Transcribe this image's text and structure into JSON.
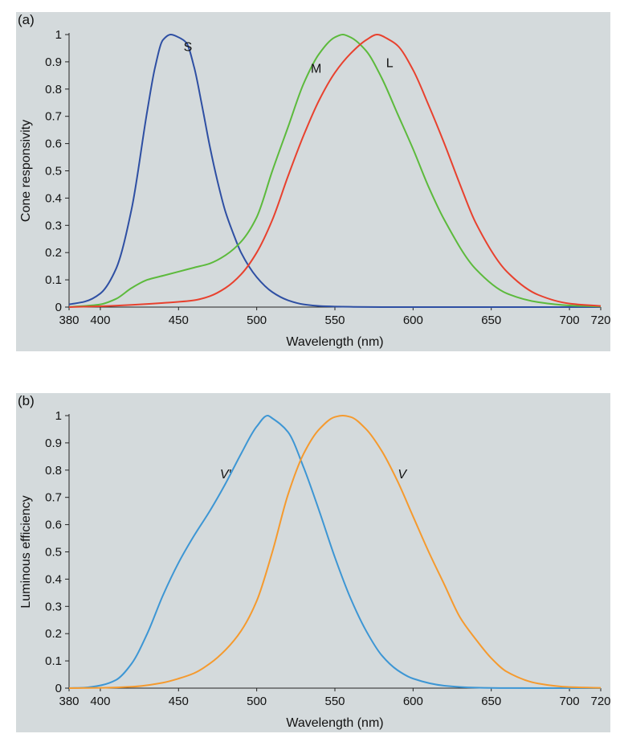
{
  "chart_data": [
    {
      "type": "line",
      "panel_label": "(a)",
      "xlabel": "Wavelength (nm)",
      "ylabel": "Cone responsivity",
      "xlim": [
        380,
        720
      ],
      "ylim": [
        0,
        1
      ],
      "x_ticks": [
        380,
        400,
        450,
        500,
        550,
        600,
        650,
        700,
        720
      ],
      "y_ticks": [
        0,
        0.1,
        0.2,
        0.3,
        0.4,
        0.5,
        0.6,
        0.7,
        0.8,
        0.9,
        1
      ],
      "y_tick_labels": [
        "0",
        "0.1",
        "0.2",
        "0.3",
        "0.4",
        "0.5",
        "0.6",
        "0.7",
        "0.8",
        "0.9",
        "1"
      ],
      "grid": false,
      "series": [
        {
          "name": "S",
          "color": "#2e4fa3",
          "label_at": [
            456,
            0.94
          ],
          "x": [
            380,
            390,
            400,
            410,
            420,
            430,
            435,
            440,
            445,
            450,
            455,
            460,
            465,
            470,
            475,
            480,
            485,
            490,
            500,
            510,
            520,
            530,
            540,
            550,
            560,
            580,
            600,
            650,
            700,
            720
          ],
          "y": [
            0.01,
            0.02,
            0.05,
            0.14,
            0.36,
            0.72,
            0.88,
            0.98,
            1.0,
            0.99,
            0.97,
            0.88,
            0.74,
            0.59,
            0.46,
            0.35,
            0.27,
            0.2,
            0.11,
            0.055,
            0.025,
            0.01,
            0.004,
            0.002,
            0.001,
            0,
            0,
            0,
            0,
            0
          ]
        },
        {
          "name": "M",
          "color": "#5cba3c",
          "label_at": [
            538,
            0.86
          ],
          "x": [
            380,
            400,
            410,
            420,
            430,
            440,
            450,
            460,
            470,
            480,
            490,
            500,
            510,
            520,
            530,
            540,
            550,
            555,
            560,
            570,
            580,
            590,
            600,
            610,
            620,
            640,
            660,
            680,
            700,
            720
          ],
          "y": [
            0,
            0.01,
            0.03,
            0.07,
            0.1,
            0.115,
            0.13,
            0.145,
            0.16,
            0.19,
            0.24,
            0.33,
            0.5,
            0.66,
            0.82,
            0.93,
            0.99,
            1.0,
            0.99,
            0.94,
            0.84,
            0.71,
            0.58,
            0.44,
            0.32,
            0.14,
            0.05,
            0.018,
            0.006,
            0.002
          ]
        },
        {
          "name": "L",
          "color": "#e8412e",
          "label_at": [
            585,
            0.88
          ],
          "x": [
            380,
            400,
            420,
            440,
            460,
            470,
            480,
            490,
            500,
            510,
            520,
            530,
            540,
            550,
            560,
            570,
            577,
            585,
            590,
            600,
            610,
            620,
            630,
            640,
            660,
            680,
            700,
            720
          ],
          "y": [
            0,
            0.003,
            0.008,
            0.015,
            0.025,
            0.04,
            0.07,
            0.12,
            0.2,
            0.32,
            0.48,
            0.63,
            0.76,
            0.86,
            0.93,
            0.98,
            1.0,
            0.98,
            0.96,
            0.87,
            0.74,
            0.6,
            0.45,
            0.31,
            0.13,
            0.045,
            0.013,
            0.004
          ]
        }
      ]
    },
    {
      "type": "line",
      "panel_label": "(b)",
      "xlabel": "Wavelength (nm)",
      "ylabel": "Luminous efficiency",
      "xlim": [
        380,
        720
      ],
      "ylim": [
        0,
        1
      ],
      "x_ticks": [
        380,
        400,
        450,
        500,
        550,
        600,
        650,
        700,
        720
      ],
      "y_ticks": [
        0,
        0.1,
        0.2,
        0.3,
        0.4,
        0.5,
        0.6,
        0.7,
        0.8,
        0.9,
        1
      ],
      "y_tick_labels": [
        "0",
        "0.1",
        "0.2",
        "0.3",
        "0.4",
        "0.5",
        "0.6",
        "0.7",
        "0.8",
        "0.9",
        "1"
      ],
      "grid": false,
      "series": [
        {
          "name": "V′",
          "color": "#3d96d4",
          "label_at": [
            480,
            0.77
          ],
          "x": [
            380,
            390,
            400,
            410,
            420,
            430,
            440,
            450,
            460,
            470,
            480,
            490,
            500,
            507,
            510,
            520,
            530,
            540,
            550,
            560,
            570,
            580,
            590,
            600,
            620,
            640,
            660,
            720
          ],
          "y": [
            0,
            0.002,
            0.01,
            0.03,
            0.09,
            0.2,
            0.34,
            0.46,
            0.56,
            0.65,
            0.75,
            0.86,
            0.96,
            1.0,
            0.99,
            0.94,
            0.81,
            0.65,
            0.48,
            0.33,
            0.21,
            0.12,
            0.066,
            0.035,
            0.009,
            0.002,
            0.0005,
            0
          ]
        },
        {
          "name": "V",
          "color": "#f59a2e",
          "label_at": [
            593,
            0.77
          ],
          "x": [
            380,
            400,
            420,
            440,
            450,
            460,
            470,
            480,
            490,
            500,
            510,
            520,
            530,
            540,
            550,
            555,
            560,
            570,
            580,
            590,
            600,
            610,
            620,
            630,
            640,
            650,
            660,
            680,
            700,
            720
          ],
          "y": [
            0,
            0.001,
            0.005,
            0.02,
            0.035,
            0.055,
            0.09,
            0.14,
            0.21,
            0.32,
            0.5,
            0.71,
            0.86,
            0.95,
            0.995,
            1.0,
            0.995,
            0.95,
            0.87,
            0.76,
            0.63,
            0.5,
            0.38,
            0.26,
            0.18,
            0.11,
            0.06,
            0.017,
            0.004,
            0.001
          ]
        }
      ]
    }
  ]
}
